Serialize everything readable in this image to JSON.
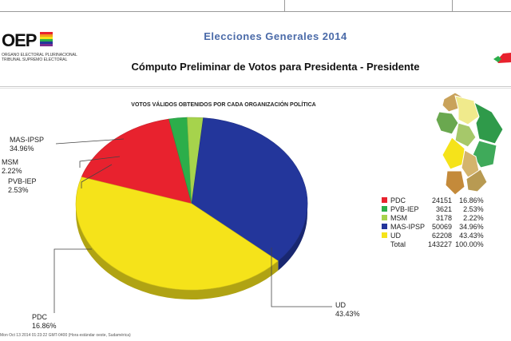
{
  "header": {
    "title": "Elecciones Generales  2014",
    "subtitle": "Cómputo Preliminar de Votos para  Presidenta - Presidente",
    "logo_text": "OEP",
    "logo_line1": "ORGANO ELECTORAL PLURINACIONAL",
    "logo_line2": "TRIBUNAL SUPREMO ELECTORAL"
  },
  "chart_data": {
    "type": "pie",
    "title": "VOTOS VÁLIDOS OBTENIDOS POR CADA ORGANIZACIÓN POLÍTICA",
    "slices": [
      {
        "name": "PDC",
        "votes": "24151",
        "percent": "16.86%",
        "value": 16.86,
        "color": "#e8222e"
      },
      {
        "name": "PVB-IEP",
        "votes": "3621",
        "percent": "2.53%",
        "value": 2.53,
        "color": "#2cae4a"
      },
      {
        "name": "MSM",
        "votes": "3178",
        "percent": "2.22%",
        "value": 2.22,
        "color": "#a6d34c"
      },
      {
        "name": "MAS-IPSP",
        "votes": "50069",
        "percent": "34.96%",
        "value": 34.96,
        "color": "#23369b"
      },
      {
        "name": "UD",
        "votes": "62208",
        "percent": "43.43%",
        "value": 43.43,
        "color": "#f5e31a"
      }
    ],
    "total": {
      "label": "Total",
      "votes": "143227",
      "percent": "100.00%"
    },
    "legend": "right"
  },
  "footer": {
    "text": "Mon Oct 13 2014 01:23:22 GMT-0400 (Hora estándar oeste, Sudamérica)"
  }
}
